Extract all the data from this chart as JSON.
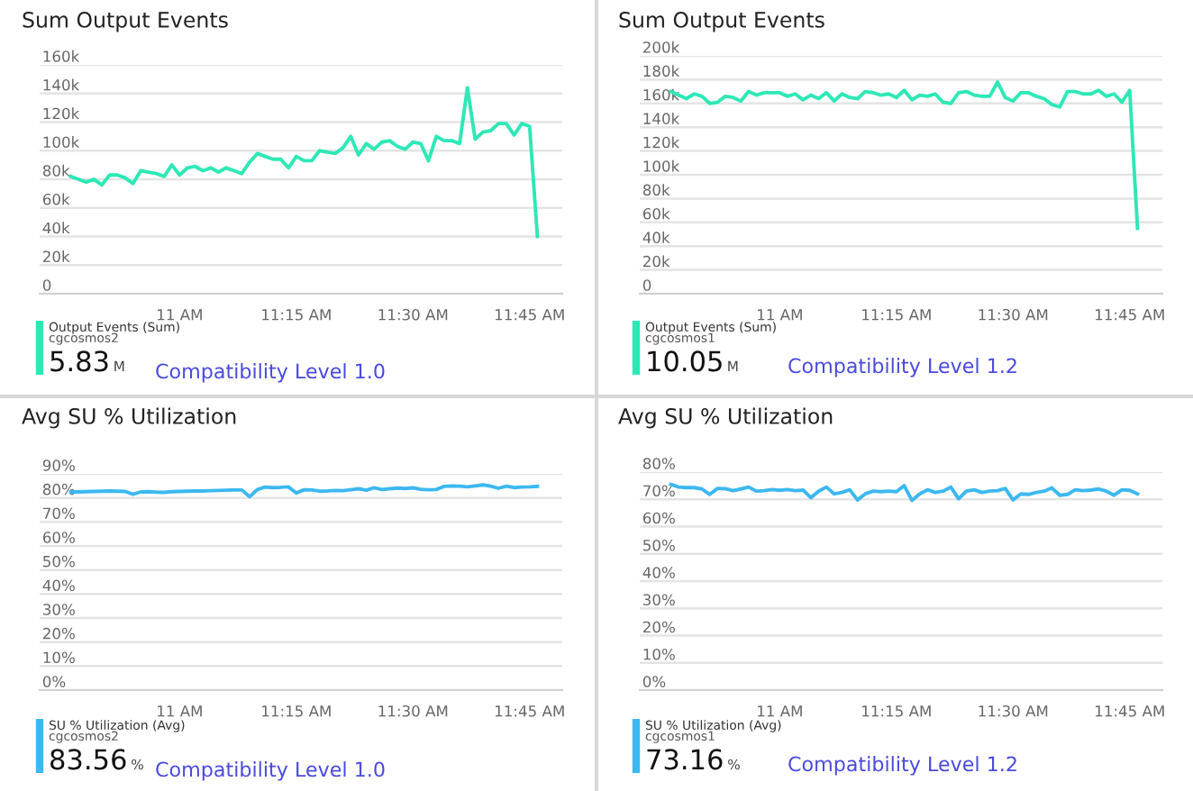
{
  "chart_data": [
    {
      "type": "line",
      "title": "Sum Output Events",
      "legend": "bottom left",
      "grid": "y",
      "x": [
        10.7667,
        10.7833,
        10.8,
        10.8167,
        10.8333,
        10.85,
        10.8667,
        10.8833,
        10.9,
        10.9167,
        10.9333,
        10.95,
        10.9667,
        10.9833,
        11.0,
        11.0167,
        11.0333,
        11.05,
        11.0667,
        11.0833,
        11.1,
        11.1167,
        11.1333,
        11.15,
        11.1667,
        11.1833,
        11.2,
        11.2167,
        11.2333,
        11.25,
        11.2667,
        11.2833,
        11.3,
        11.3167,
        11.3333,
        11.35,
        11.3667,
        11.3833,
        11.4,
        11.4167,
        11.4333,
        11.45,
        11.4667,
        11.4833,
        11.5,
        11.5167,
        11.5333,
        11.55,
        11.5667,
        11.5833,
        11.6,
        11.6167,
        11.6333,
        11.65,
        11.6667,
        11.6833,
        11.7,
        11.7167,
        11.7333,
        11.75,
        11.7667
      ],
      "xlim": [
        10.7,
        11.82
      ],
      "xticks": [
        {
          "value": 11,
          "label": "11 AM"
        },
        {
          "value": 11.25,
          "label": "11:15 AM"
        },
        {
          "value": 11.5,
          "label": "11:30 AM"
        },
        {
          "value": 11.75,
          "label": "11:45 AM"
        }
      ],
      "ylim": [
        0,
        160000
      ],
      "yticks": [
        0,
        {
          "value": 20000,
          "label": "20k"
        },
        {
          "value": 40000,
          "label": "40k"
        },
        {
          "value": 60000,
          "label": "60k"
        },
        {
          "value": 80000,
          "label": "80k"
        },
        {
          "value": 100000,
          "label": "100k"
        },
        {
          "value": 120000,
          "label": "120k"
        },
        {
          "value": 140000,
          "label": "140k"
        },
        {
          "value": 160000,
          "label": "160k"
        }
      ],
      "series": [
        {
          "name": "Output Events (Sum)",
          "color": "#2ee8b6",
          "values": [
            82000,
            80000,
            78000,
            80000,
            76000,
            83000,
            83000,
            81000,
            77000,
            86000,
            85000,
            84000,
            82000,
            90000,
            83000,
            88000,
            89000,
            86000,
            88000,
            85000,
            88000,
            86000,
            84000,
            92000,
            98000,
            96000,
            94000,
            94000,
            88000,
            96000,
            93000,
            93000,
            100000,
            99000,
            98000,
            102000,
            110000,
            97000,
            105000,
            101000,
            106000,
            107000,
            103000,
            101000,
            106000,
            105000,
            93000,
            110000,
            107000,
            107000,
            105000,
            144000,
            108000,
            113000,
            114000,
            119000,
            119000,
            111000,
            119000,
            117000,
            40000
          ]
        }
      ],
      "annotations": [
        "cgcosmos2",
        "5.83",
        "M",
        "Compatibility Level 1.0"
      ]
    },
    {
      "type": "line",
      "title": "Sum Output Events",
      "legend": "bottom left",
      "grid": "y",
      "x": [
        10.7667,
        10.7833,
        10.8,
        10.8167,
        10.8333,
        10.85,
        10.8667,
        10.8833,
        10.9,
        10.9167,
        10.9333,
        10.95,
        10.9667,
        10.9833,
        11.0,
        11.0167,
        11.0333,
        11.05,
        11.0667,
        11.0833,
        11.1,
        11.1167,
        11.1333,
        11.15,
        11.1667,
        11.1833,
        11.2,
        11.2167,
        11.2333,
        11.25,
        11.2667,
        11.2833,
        11.3,
        11.3167,
        11.3333,
        11.35,
        11.3667,
        11.3833,
        11.4,
        11.4167,
        11.4333,
        11.45,
        11.4667,
        11.4833,
        11.5,
        11.5167,
        11.5333,
        11.55,
        11.5667,
        11.5833,
        11.6,
        11.6167,
        11.6333,
        11.65,
        11.6667,
        11.6833,
        11.7,
        11.7167,
        11.7333,
        11.75,
        11.7667
      ],
      "xlim": [
        10.7,
        11.82
      ],
      "xticks": [
        {
          "value": 11,
          "label": "11 AM"
        },
        {
          "value": 11.25,
          "label": "11:15 AM"
        },
        {
          "value": 11.5,
          "label": "11:30 AM"
        },
        {
          "value": 11.75,
          "label": "11:45 AM"
        }
      ],
      "ylim": [
        0,
        200000
      ],
      "yticks": [
        0,
        {
          "value": 20000,
          "label": "20k"
        },
        {
          "value": 40000,
          "label": "40k"
        },
        {
          "value": 60000,
          "label": "60k"
        },
        {
          "value": 80000,
          "label": "80k"
        },
        {
          "value": 100000,
          "label": "100k"
        },
        {
          "value": 120000,
          "label": "120k"
        },
        {
          "value": 140000,
          "label": "140k"
        },
        {
          "value": 160000,
          "label": "160k"
        },
        {
          "value": 180000,
          "label": "180k"
        },
        {
          "value": 200000,
          "label": "200k"
        }
      ],
      "series": [
        {
          "name": "Output Events (Sum)",
          "color": "#2ee8b6",
          "values": [
            170000,
            167000,
            164000,
            168000,
            166000,
            160000,
            161000,
            166000,
            165000,
            162000,
            170000,
            167000,
            169000,
            169000,
            169000,
            166000,
            168000,
            163000,
            167000,
            164000,
            169000,
            162000,
            168000,
            165000,
            164000,
            170000,
            169000,
            167000,
            168000,
            165000,
            171000,
            163000,
            167000,
            166000,
            168000,
            161000,
            160000,
            169000,
            170000,
            167000,
            166000,
            166000,
            178000,
            165000,
            162000,
            169000,
            169000,
            166000,
            164000,
            159000,
            157000,
            170000,
            170000,
            168000,
            168000,
            171000,
            166000,
            168000,
            161000,
            171000,
            55000
          ]
        }
      ],
      "annotations": [
        "cgcosmos1",
        "10.05",
        "M",
        "Compatibility Level 1.2"
      ]
    },
    {
      "type": "line",
      "title": "Avg SU % Utilization",
      "legend": "bottom left",
      "grid": "y",
      "x": [
        10.7667,
        10.7833,
        10.8,
        10.8167,
        10.8333,
        10.85,
        10.8667,
        10.8833,
        10.9,
        10.9167,
        10.9333,
        10.95,
        10.9667,
        10.9833,
        11.0,
        11.0167,
        11.0333,
        11.05,
        11.0667,
        11.0833,
        11.1,
        11.1167,
        11.1333,
        11.15,
        11.1667,
        11.1833,
        11.2,
        11.2167,
        11.2333,
        11.25,
        11.2667,
        11.2833,
        11.3,
        11.3167,
        11.3333,
        11.35,
        11.3667,
        11.3833,
        11.4,
        11.4167,
        11.4333,
        11.45,
        11.4667,
        11.4833,
        11.5,
        11.5167,
        11.5333,
        11.55,
        11.5667,
        11.5833,
        11.6,
        11.6167,
        11.6333,
        11.65,
        11.6667,
        11.6833,
        11.7,
        11.7167,
        11.7333,
        11.75,
        11.7667
      ],
      "xlim": [
        10.7,
        11.82
      ],
      "xticks": [
        {
          "value": 11,
          "label": "11 AM"
        },
        {
          "value": 11.25,
          "label": "11:15 AM"
        },
        {
          "value": 11.5,
          "label": "11:30 AM"
        },
        {
          "value": 11.75,
          "label": "11:45 AM"
        }
      ],
      "ylim": [
        0,
        90
      ],
      "yticks": [
        {
          "value": 0,
          "label": "0%"
        },
        {
          "value": 10,
          "label": "10%"
        },
        {
          "value": 20,
          "label": "20%"
        },
        {
          "value": 30,
          "label": "30%"
        },
        {
          "value": 40,
          "label": "40%"
        },
        {
          "value": 50,
          "label": "50%"
        },
        {
          "value": 60,
          "label": "60%"
        },
        {
          "value": 70,
          "label": "70%"
        },
        {
          "value": 80,
          "label": "80%"
        },
        {
          "value": 90,
          "label": "90%"
        }
      ],
      "series": [
        {
          "name": "SU % Utilization (Avg)",
          "color": "#3cb8f0",
          "values": [
            82.5,
            82.5,
            82.6,
            82.7,
            82.8,
            82.9,
            82.8,
            82.7,
            81.5,
            82.5,
            82.6,
            82.4,
            82.3,
            82.6,
            82.7,
            82.8,
            82.9,
            82.9,
            83,
            83.1,
            83.2,
            83.3,
            83.3,
            80.5,
            83.5,
            84.5,
            84.3,
            84.4,
            84.6,
            82,
            83.4,
            83.3,
            82.8,
            82.9,
            83.1,
            83,
            83.4,
            83.8,
            83.2,
            84.2,
            83.5,
            83.8,
            84.1,
            83.9,
            84.2,
            83.6,
            83.4,
            83.5,
            84.8,
            85,
            84.9,
            84.6,
            85,
            85.4,
            84.9,
            84,
            84.9,
            84.3,
            84.5,
            84.6,
            84.8
          ]
        }
      ],
      "annotations": [
        "cgcosmos2",
        "83.56",
        "%",
        "Compatibility Level 1.0"
      ]
    },
    {
      "type": "line",
      "title": "Avg SU % Utilization",
      "legend": "bottom left",
      "grid": "y",
      "x": [
        10.7667,
        10.7833,
        10.8,
        10.8167,
        10.8333,
        10.85,
        10.8667,
        10.8833,
        10.9,
        10.9167,
        10.9333,
        10.95,
        10.9667,
        10.9833,
        11.0,
        11.0167,
        11.0333,
        11.05,
        11.0667,
        11.0833,
        11.1,
        11.1167,
        11.1333,
        11.15,
        11.1667,
        11.1833,
        11.2,
        11.2167,
        11.2333,
        11.25,
        11.2667,
        11.2833,
        11.3,
        11.3167,
        11.3333,
        11.35,
        11.3667,
        11.3833,
        11.4,
        11.4167,
        11.4333,
        11.45,
        11.4667,
        11.4833,
        11.5,
        11.5167,
        11.5333,
        11.55,
        11.5667,
        11.5833,
        11.6,
        11.6167,
        11.6333,
        11.65,
        11.6667,
        11.6833,
        11.7,
        11.7167,
        11.7333,
        11.75,
        11.7667
      ],
      "xlim": [
        10.7,
        11.82
      ],
      "xticks": [
        {
          "value": 11,
          "label": "11 AM"
        },
        {
          "value": 11.25,
          "label": "11:15 AM"
        },
        {
          "value": 11.5,
          "label": "11:30 AM"
        },
        {
          "value": 11.75,
          "label": "11:45 AM"
        }
      ],
      "ylim": [
        0,
        80
      ],
      "yticks": [
        {
          "value": 0,
          "label": "0%"
        },
        {
          "value": 10,
          "label": "10%"
        },
        {
          "value": 20,
          "label": "20%"
        },
        {
          "value": 30,
          "label": "30%"
        },
        {
          "value": 40,
          "label": "40%"
        },
        {
          "value": 50,
          "label": "50%"
        },
        {
          "value": 60,
          "label": "60%"
        },
        {
          "value": 70,
          "label": "70%"
        },
        {
          "value": 80,
          "label": "80%"
        }
      ],
      "series": [
        {
          "name": "SU % Utilization (Avg)",
          "color": "#3cb8f0",
          "values": [
            75.5,
            74.5,
            74.3,
            74.3,
            73.8,
            71.8,
            74,
            73.9,
            73.2,
            73.8,
            74.5,
            73,
            73.2,
            73.6,
            73.3,
            73.6,
            73.2,
            73.4,
            70.6,
            73,
            74.5,
            72,
            72.5,
            73.5,
            69.8,
            72,
            73,
            72.8,
            73,
            72.8,
            75,
            69.6,
            72,
            73.5,
            72.5,
            73,
            74.5,
            70.2,
            73,
            73.5,
            72.5,
            73,
            73.2,
            74,
            69.8,
            72,
            71.8,
            72.5,
            73,
            74.2,
            71.5,
            71.8,
            73.5,
            73.2,
            73.4,
            73.8,
            73,
            71.5,
            73.5,
            73.3,
            72
          ]
        }
      ],
      "annotations": [
        "cgcosmos1",
        "73.16",
        "%",
        "Compatibility Level 1.2"
      ]
    }
  ]
}
